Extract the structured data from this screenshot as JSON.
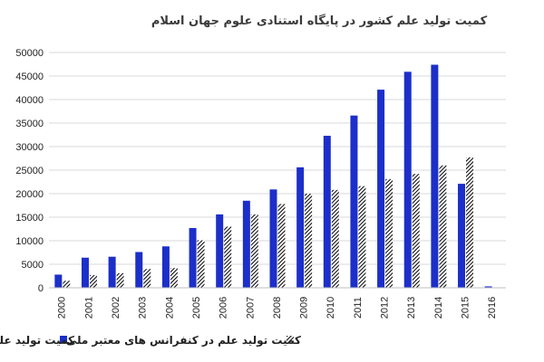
{
  "chart_data": {
    "type": "bar",
    "title": "کمیت تولید علم کشور در پایگاه استنادی علوم جهان اسلام",
    "categories": [
      "2000",
      "2001",
      "2002",
      "2003",
      "2004",
      "2005",
      "2006",
      "2007",
      "2008",
      "2009",
      "2010",
      "2011",
      "2012",
      "2013",
      "2014",
      "2015",
      "2016"
    ],
    "series": [
      {
        "name": "کمیت تولید علم در معتبرترین مجلات ملی",
        "color": "#1c2fc9",
        "pattern": "solid",
        "values": [
          2800,
          6400,
          6600,
          7600,
          8800,
          12700,
          15600,
          18500,
          20900,
          25600,
          32300,
          36600,
          42100,
          45900,
          47400,
          22100,
          300
        ]
      },
      {
        "name": "کمیت تولید علم در کنفرانس های معتبر ملی",
        "color": "#000000",
        "pattern": "diagonal-hatch",
        "values": [
          1500,
          2700,
          3100,
          4000,
          4200,
          10100,
          13000,
          15600,
          17800,
          20000,
          20800,
          21600,
          23100,
          24200,
          26000,
          27700,
          0
        ]
      }
    ],
    "ylim": [
      0,
      50000
    ],
    "yticks": [
      0,
      5000,
      10000,
      15000,
      20000,
      25000,
      30000,
      35000,
      40000,
      45000,
      50000
    ],
    "ytick_labels": [
      "0",
      "5000",
      "10000",
      "15000",
      "20000",
      "25000",
      "30000",
      "35000",
      "40000",
      "45000",
      "50000"
    ],
    "grid": true,
    "legend_position": "bottom",
    "xlabel": "",
    "ylabel": ""
  }
}
